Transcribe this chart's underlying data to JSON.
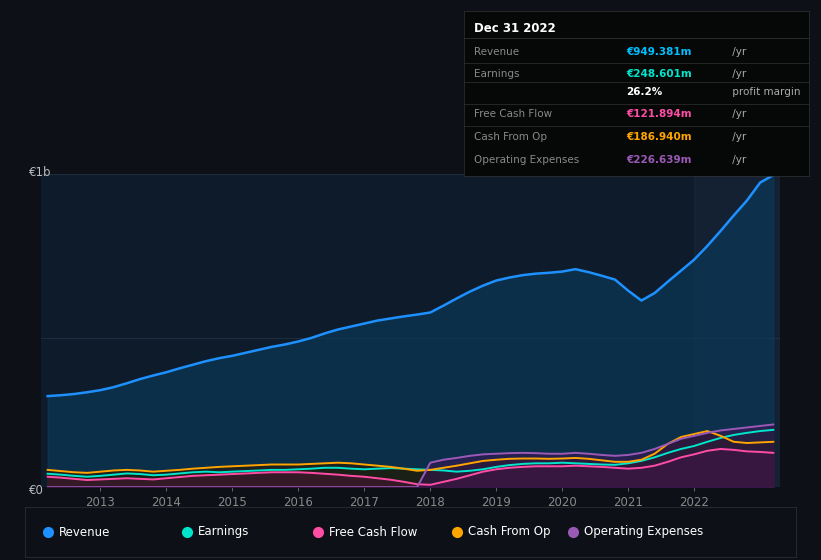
{
  "background_color": "#0d1117",
  "plot_bg_color": "#0d1b2a",
  "hline_color": "#1e2d3d",
  "revenue_color": "#1e90ff",
  "revenue_fill": "#0a3a5a",
  "earnings_color": "#00e5cc",
  "earnings_fill": "#0a2a25",
  "fcf_color": "#ff4da6",
  "fcf_fill": "#4a1535",
  "cashop_color": "#ffa500",
  "cashop_fill": "#2a1800",
  "opex_color": "#9b59b6",
  "opex_fill": "#3a1555",
  "ylabel_top": "€1b",
  "ylabel_bottom": "€0",
  "xlim": [
    2012.1,
    2023.3
  ],
  "ylim": [
    0,
    1050
  ],
  "midline": 500,
  "xtick_labels": [
    "2013",
    "2014",
    "2015",
    "2016",
    "2017",
    "2018",
    "2019",
    "2020",
    "2021",
    "2022"
  ],
  "xtick_positions": [
    2013,
    2014,
    2015,
    2016,
    2017,
    2018,
    2019,
    2020,
    2021,
    2022
  ],
  "legend": [
    {
      "label": "Revenue",
      "color": "#1e90ff"
    },
    {
      "label": "Earnings",
      "color": "#00e5cc"
    },
    {
      "label": "Free Cash Flow",
      "color": "#ff4da6"
    },
    {
      "label": "Cash From Op",
      "color": "#ffa500"
    },
    {
      "label": "Operating Expenses",
      "color": "#9b59b6"
    }
  ],
  "revenue_x": [
    2012.2,
    2012.4,
    2012.6,
    2012.8,
    2013.0,
    2013.2,
    2013.4,
    2013.6,
    2013.8,
    2014.0,
    2014.2,
    2014.4,
    2014.6,
    2014.8,
    2015.0,
    2015.2,
    2015.4,
    2015.6,
    2015.8,
    2016.0,
    2016.2,
    2016.4,
    2016.6,
    2016.8,
    2017.0,
    2017.2,
    2017.4,
    2017.6,
    2017.8,
    2018.0,
    2018.2,
    2018.4,
    2018.6,
    2018.8,
    2019.0,
    2019.2,
    2019.4,
    2019.6,
    2019.8,
    2020.0,
    2020.2,
    2020.4,
    2020.6,
    2020.8,
    2021.0,
    2021.2,
    2021.4,
    2021.6,
    2021.8,
    2022.0,
    2022.2,
    2022.4,
    2022.6,
    2022.8,
    2023.0,
    2023.2
  ],
  "revenue_y": [
    305,
    308,
    312,
    318,
    325,
    335,
    348,
    362,
    374,
    385,
    398,
    410,
    422,
    432,
    440,
    450,
    460,
    470,
    478,
    488,
    500,
    515,
    528,
    538,
    548,
    558,
    565,
    572,
    578,
    585,
    608,
    632,
    655,
    675,
    692,
    702,
    710,
    715,
    718,
    722,
    730,
    720,
    708,
    695,
    658,
    625,
    650,
    688,
    725,
    762,
    808,
    858,
    910,
    960,
    1020,
    1045
  ],
  "earnings_x": [
    2012.2,
    2012.4,
    2012.6,
    2012.8,
    2013.0,
    2013.2,
    2013.4,
    2013.6,
    2013.8,
    2014.0,
    2014.2,
    2014.4,
    2014.6,
    2014.8,
    2015.0,
    2015.2,
    2015.4,
    2015.6,
    2015.8,
    2016.0,
    2016.2,
    2016.4,
    2016.6,
    2016.8,
    2017.0,
    2017.2,
    2017.4,
    2017.6,
    2017.8,
    2018.0,
    2018.2,
    2018.4,
    2018.6,
    2018.8,
    2019.0,
    2019.2,
    2019.4,
    2019.6,
    2019.8,
    2020.0,
    2020.2,
    2020.4,
    2020.6,
    2020.8,
    2021.0,
    2021.2,
    2021.4,
    2021.6,
    2021.8,
    2022.0,
    2022.2,
    2022.4,
    2022.6,
    2022.8,
    2023.0,
    2023.2
  ],
  "earnings_y": [
    45,
    42,
    38,
    35,
    38,
    42,
    46,
    44,
    40,
    42,
    46,
    50,
    52,
    50,
    52,
    54,
    56,
    58,
    58,
    60,
    62,
    65,
    65,
    62,
    60,
    62,
    64,
    62,
    60,
    58,
    56,
    52,
    55,
    60,
    68,
    74,
    78,
    80,
    80,
    82,
    80,
    78,
    76,
    75,
    80,
    88,
    100,
    115,
    128,
    138,
    152,
    165,
    175,
    182,
    188,
    192
  ],
  "fcf_x": [
    2012.2,
    2012.4,
    2012.6,
    2012.8,
    2013.0,
    2013.2,
    2013.4,
    2013.6,
    2013.8,
    2014.0,
    2014.2,
    2014.4,
    2014.6,
    2014.8,
    2015.0,
    2015.2,
    2015.4,
    2015.6,
    2015.8,
    2016.0,
    2016.2,
    2016.4,
    2016.6,
    2016.8,
    2017.0,
    2017.2,
    2017.4,
    2017.6,
    2017.8,
    2018.0,
    2018.2,
    2018.4,
    2018.6,
    2018.8,
    2019.0,
    2019.2,
    2019.4,
    2019.6,
    2019.8,
    2020.0,
    2020.2,
    2020.4,
    2020.6,
    2020.8,
    2021.0,
    2021.2,
    2021.4,
    2021.6,
    2021.8,
    2022.0,
    2022.2,
    2022.4,
    2022.6,
    2022.8,
    2023.0,
    2023.2
  ],
  "fcf_y": [
    35,
    32,
    28,
    24,
    26,
    28,
    30,
    28,
    26,
    30,
    34,
    38,
    40,
    42,
    44,
    46,
    48,
    50,
    50,
    50,
    48,
    45,
    42,
    38,
    35,
    30,
    25,
    18,
    10,
    8,
    18,
    28,
    40,
    52,
    60,
    65,
    68,
    70,
    70,
    70,
    72,
    70,
    68,
    65,
    62,
    65,
    72,
    85,
    100,
    110,
    122,
    128,
    125,
    120,
    118,
    115
  ],
  "cashop_x": [
    2012.2,
    2012.4,
    2012.6,
    2012.8,
    2013.0,
    2013.2,
    2013.4,
    2013.6,
    2013.8,
    2014.0,
    2014.2,
    2014.4,
    2014.6,
    2014.8,
    2015.0,
    2015.2,
    2015.4,
    2015.6,
    2015.8,
    2016.0,
    2016.2,
    2016.4,
    2016.6,
    2016.8,
    2017.0,
    2017.2,
    2017.4,
    2017.6,
    2017.8,
    2018.0,
    2018.2,
    2018.4,
    2018.6,
    2018.8,
    2019.0,
    2019.2,
    2019.4,
    2019.6,
    2019.8,
    2020.0,
    2020.2,
    2020.4,
    2020.6,
    2020.8,
    2021.0,
    2021.2,
    2021.4,
    2021.6,
    2021.8,
    2022.0,
    2022.2,
    2022.4,
    2022.6,
    2022.8,
    2023.0,
    2023.2
  ],
  "cashop_y": [
    58,
    54,
    50,
    48,
    52,
    56,
    58,
    56,
    52,
    55,
    58,
    62,
    65,
    68,
    70,
    72,
    74,
    76,
    76,
    76,
    78,
    80,
    82,
    80,
    76,
    72,
    68,
    62,
    55,
    58,
    65,
    72,
    80,
    88,
    92,
    95,
    96,
    96,
    95,
    96,
    98,
    95,
    90,
    85,
    85,
    92,
    112,
    145,
    168,
    178,
    188,
    172,
    152,
    148,
    150,
    152
  ],
  "opex_x": [
    2012.2,
    2012.4,
    2012.6,
    2012.8,
    2013.0,
    2013.2,
    2013.4,
    2013.6,
    2013.8,
    2014.0,
    2014.2,
    2014.4,
    2014.6,
    2014.8,
    2015.0,
    2015.2,
    2015.4,
    2015.6,
    2015.8,
    2016.0,
    2016.2,
    2016.4,
    2016.6,
    2016.8,
    2017.0,
    2017.2,
    2017.4,
    2017.6,
    2017.8,
    2018.0,
    2018.2,
    2018.4,
    2018.6,
    2018.8,
    2019.0,
    2019.2,
    2019.4,
    2019.6,
    2019.8,
    2020.0,
    2020.2,
    2020.4,
    2020.6,
    2020.8,
    2021.0,
    2021.2,
    2021.4,
    2021.6,
    2021.8,
    2022.0,
    2022.2,
    2022.4,
    2022.6,
    2022.8,
    2023.0,
    2023.2
  ],
  "opex_y": [
    0,
    0,
    0,
    0,
    0,
    0,
    0,
    0,
    0,
    0,
    0,
    0,
    0,
    0,
    0,
    0,
    0,
    0,
    0,
    0,
    0,
    0,
    0,
    0,
    0,
    0,
    0,
    0,
    0,
    82,
    92,
    98,
    105,
    110,
    112,
    114,
    115,
    114,
    112,
    112,
    115,
    112,
    108,
    105,
    108,
    115,
    128,
    145,
    162,
    172,
    182,
    190,
    195,
    200,
    205,
    210
  ]
}
